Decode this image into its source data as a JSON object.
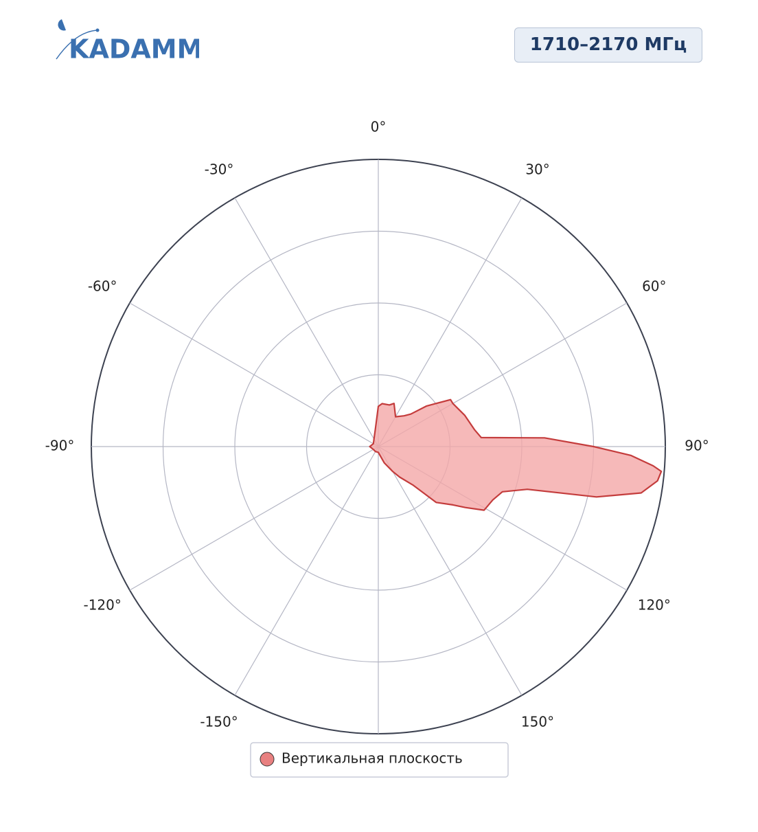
{
  "logo": "KADAMM",
  "badge": "1710–2170 МГц",
  "chart_data": {
    "type": "polar",
    "rlim": [
      0,
      1
    ],
    "rticks": [
      0.25,
      0.5,
      0.75,
      1
    ],
    "thetaticks": [
      {
        "value": 0,
        "label": "0°"
      },
      {
        "value": 30,
        "label": "30°"
      },
      {
        "value": 60,
        "label": "60°"
      },
      {
        "value": 90,
        "label": "90°"
      },
      {
        "value": 120,
        "label": "120°"
      },
      {
        "value": 150,
        "label": "150°"
      },
      {
        "value": 180,
        "label": null
      },
      {
        "value": -150,
        "label": "-150°"
      },
      {
        "value": -120,
        "label": "-120°"
      },
      {
        "value": -90,
        "label": "-90°"
      },
      {
        "value": -60,
        "label": "-60°"
      },
      {
        "value": -30,
        "label": "-30°"
      }
    ],
    "grid": true,
    "legend": "bottom",
    "series": [
      {
        "name": "Вертикальная плоскость",
        "color": "#c43c3c",
        "fill": "#f4a7a7",
        "theta": [
          -180,
          -150,
          -120,
          -90,
          -60,
          -30,
          -10,
          0,
          5,
          15,
          20,
          30,
          40,
          45,
          50,
          57,
          60,
          70,
          80,
          85,
          87,
          90,
          92,
          94,
          95,
          97,
          100,
          103,
          106,
          110,
          115,
          121,
          125,
          128,
          134,
          138,
          145,
          150,
          160,
          170
        ],
        "values": [
          0.02,
          0.02,
          0.02,
          0.03,
          0.02,
          0.03,
          0.06,
          0.14,
          0.15,
          0.15,
          0.16,
          0.12,
          0.14,
          0.16,
          0.22,
          0.3,
          0.3,
          0.32,
          0.34,
          0.36,
          0.58,
          0.75,
          0.88,
          0.96,
          0.99,
          0.98,
          0.93,
          0.78,
          0.54,
          0.46,
          0.44,
          0.43,
          0.37,
          0.33,
          0.28,
          0.18,
          0.13,
          0.1,
          0.06,
          0.03
        ]
      }
    ]
  }
}
